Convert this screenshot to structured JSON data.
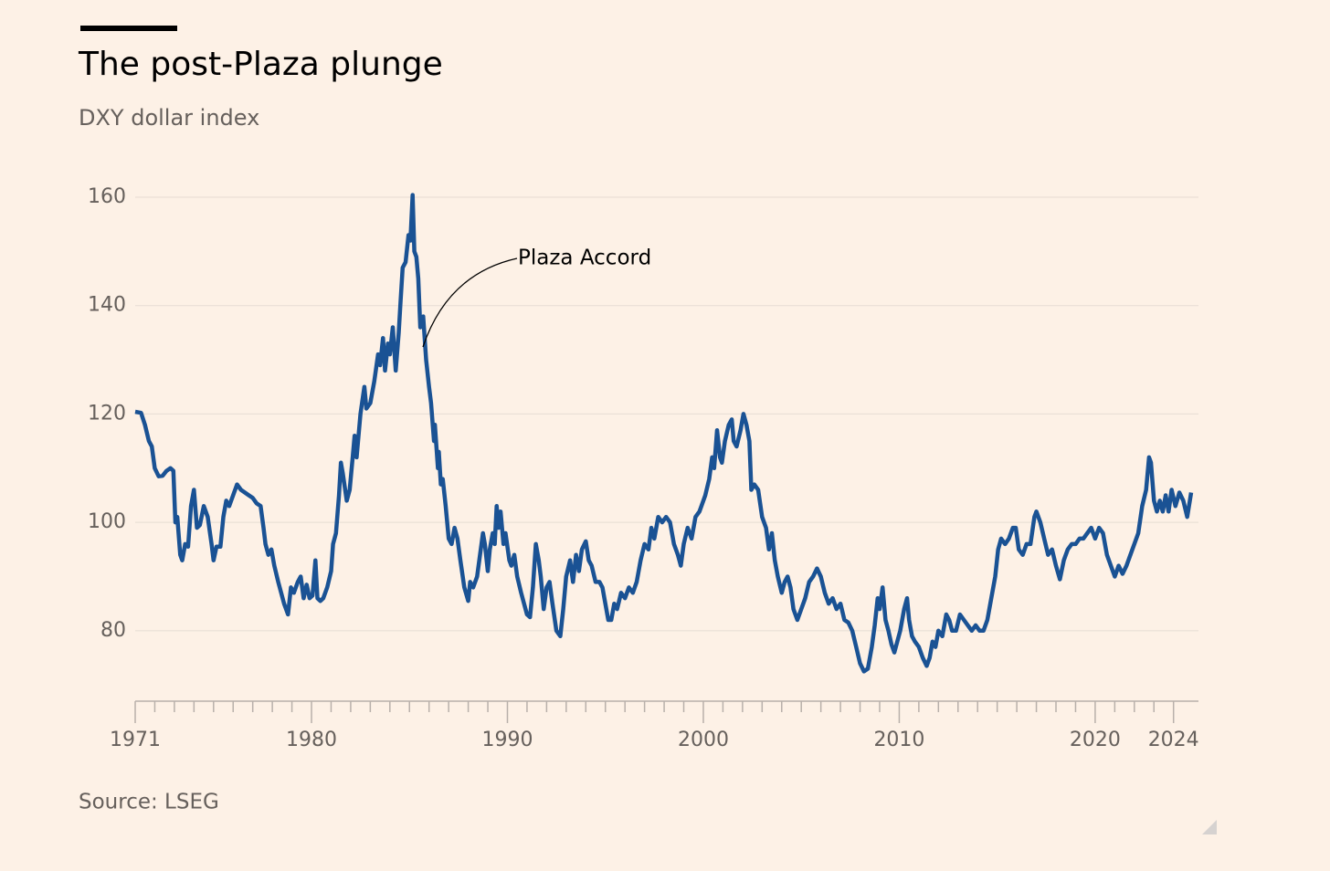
{
  "chart_data": {
    "type": "line",
    "title": "The post-Plaza plunge",
    "subtitle": "DXY dollar index",
    "source": "Source: LSEG",
    "annotation": "Plaza Accord",
    "color": "#1a5294",
    "grid": true,
    "xlim": [
      1971,
      2024.9
    ],
    "xticks": [
      1971,
      1980,
      1990,
      2000,
      2010,
      2020,
      2024
    ],
    "xminor_ticks": [
      1972,
      1973,
      1974,
      1975,
      1976,
      1977,
      1978,
      1979,
      1981,
      1982,
      1983,
      1984,
      1985,
      1986,
      1987,
      1988,
      1989,
      1991,
      1992,
      1993,
      1994,
      1995,
      1996,
      1997,
      1998,
      1999,
      2001,
      2002,
      2003,
      2004,
      2005,
      2006,
      2007,
      2008,
      2009,
      2011,
      2012,
      2013,
      2014,
      2015,
      2016,
      2017,
      2018,
      2019,
      2021,
      2022,
      2023
    ],
    "ylim": [
      67,
      160
    ],
    "yticks": [
      80,
      100,
      120,
      140,
      160
    ],
    "x": [
      1971.0,
      1971.3,
      1971.5,
      1971.7,
      1971.85,
      1972.0,
      1972.2,
      1972.4,
      1972.6,
      1972.8,
      1972.95,
      1973.05,
      1973.15,
      1973.3,
      1973.4,
      1973.55,
      1973.7,
      1973.85,
      1974.0,
      1974.15,
      1974.3,
      1974.5,
      1974.7,
      1974.9,
      1975.0,
      1975.15,
      1975.35,
      1975.5,
      1975.65,
      1975.8,
      1976.0,
      1976.2,
      1976.4,
      1976.6,
      1976.8,
      1977.0,
      1977.2,
      1977.4,
      1977.55,
      1977.65,
      1977.8,
      1977.95,
      1978.1,
      1978.3,
      1978.45,
      1978.6,
      1978.8,
      1978.95,
      1979.1,
      1979.3,
      1979.45,
      1979.6,
      1979.75,
      1979.9,
      1980.05,
      1980.2,
      1980.3,
      1980.45,
      1980.6,
      1980.8,
      1981.0,
      1981.1,
      1981.25,
      1981.4,
      1981.5,
      1981.6,
      1981.8,
      1981.95,
      1982.1,
      1982.2,
      1982.3,
      1982.5,
      1982.7,
      1982.8,
      1983.0,
      1983.2,
      1983.4,
      1983.5,
      1983.65,
      1983.75,
      1983.9,
      1984.0,
      1984.15,
      1984.3,
      1984.45,
      1984.55,
      1984.65,
      1984.8,
      1984.95,
      1985.05,
      1985.16,
      1985.25,
      1985.35,
      1985.45,
      1985.55,
      1985.7,
      1985.85,
      1986.0,
      1986.1,
      1986.25,
      1986.3,
      1986.45,
      1986.5,
      1986.6,
      1986.7,
      1986.85,
      1987.0,
      1987.15,
      1987.3,
      1987.45,
      1987.6,
      1987.8,
      1988.0,
      1988.1,
      1988.25,
      1988.45,
      1988.6,
      1988.75,
      1988.85,
      1989.0,
      1989.1,
      1989.25,
      1989.35,
      1989.45,
      1989.55,
      1989.65,
      1989.8,
      1989.9,
      1990.1,
      1990.2,
      1990.35,
      1990.5,
      1990.7,
      1990.85,
      1991.0,
      1991.15,
      1991.3,
      1991.45,
      1991.6,
      1991.7,
      1991.85,
      1992.0,
      1992.15,
      1992.3,
      1992.5,
      1992.7,
      1992.85,
      1993.0,
      1993.2,
      1993.35,
      1993.5,
      1993.65,
      1993.8,
      1994.0,
      1994.15,
      1994.3,
      1994.5,
      1994.7,
      1994.85,
      1995.0,
      1995.15,
      1995.3,
      1995.45,
      1995.6,
      1995.8,
      1996.0,
      1996.2,
      1996.4,
      1996.6,
      1996.8,
      1997.0,
      1997.2,
      1997.35,
      1997.5,
      1997.7,
      1997.9,
      1998.1,
      1998.3,
      1998.5,
      1998.7,
      1998.85,
      1999.0,
      1999.2,
      1999.4,
      1999.6,
      1999.8,
      2000.0,
      2000.1,
      2000.3,
      2000.45,
      2000.55,
      2000.7,
      2000.85,
      2000.95,
      2001.1,
      2001.3,
      2001.45,
      2001.55,
      2001.7,
      2001.9,
      2002.05,
      2002.2,
      2002.35,
      2002.45,
      2002.6,
      2002.8,
      2003.0,
      2003.2,
      2003.35,
      2003.5,
      2003.65,
      2003.8,
      2004.0,
      2004.15,
      2004.3,
      2004.45,
      2004.6,
      2004.8,
      2005.0,
      2005.2,
      2005.4,
      2005.6,
      2005.8,
      2006.0,
      2006.2,
      2006.4,
      2006.6,
      2006.8,
      2007.0,
      2007.2,
      2007.4,
      2007.6,
      2007.8,
      2008.0,
      2008.2,
      2008.4,
      2008.6,
      2008.75,
      2008.9,
      2009.0,
      2009.15,
      2009.3,
      2009.45,
      2009.6,
      2009.75,
      2009.9,
      2010.05,
      2010.25,
      2010.4,
      2010.5,
      2010.65,
      2010.8,
      2011.0,
      2011.2,
      2011.4,
      2011.55,
      2011.7,
      2011.85,
      2012.0,
      2012.2,
      2012.4,
      2012.55,
      2012.7,
      2012.9,
      2013.1,
      2013.3,
      2013.5,
      2013.7,
      2013.9,
      2014.1,
      2014.3,
      2014.5,
      2014.7,
      2014.9,
      2015.05,
      2015.2,
      2015.4,
      2015.6,
      2015.8,
      2015.95,
      2016.1,
      2016.3,
      2016.5,
      2016.7,
      2016.9,
      2017.0,
      2017.2,
      2017.4,
      2017.6,
      2017.8,
      2018.0,
      2018.2,
      2018.4,
      2018.6,
      2018.8,
      2019.0,
      2019.2,
      2019.4,
      2019.6,
      2019.8,
      2020.0,
      2020.2,
      2020.4,
      2020.6,
      2020.8,
      2021.0,
      2021.2,
      2021.4,
      2021.6,
      2021.8,
      2022.0,
      2022.2,
      2022.4,
      2022.6,
      2022.75,
      2022.85,
      2023.0,
      2023.15,
      2023.3,
      2023.45,
      2023.6,
      2023.75,
      2023.9,
      2024.1,
      2024.3,
      2024.5,
      2024.7,
      2024.9
    ],
    "values": [
      120.4,
      120.2,
      118,
      115,
      114,
      110,
      108.5,
      108.6,
      109.5,
      110,
      109.5,
      100,
      101,
      94,
      93,
      96,
      95.5,
      103,
      106,
      99,
      99.5,
      103,
      101,
      96,
      93,
      95.5,
      95.5,
      101,
      104,
      103,
      105,
      107,
      106,
      105.5,
      105,
      104.5,
      103.5,
      103,
      99,
      96,
      94,
      95,
      92,
      89,
      87,
      85,
      83,
      88,
      87,
      89,
      90,
      86,
      88.5,
      86,
      86.5,
      93,
      86,
      85.5,
      86,
      88,
      91,
      96,
      98,
      105,
      111,
      109,
      104,
      106,
      112,
      116,
      112,
      120,
      125,
      121,
      122,
      126,
      131,
      129,
      134,
      128,
      133,
      131,
      136,
      128,
      135,
      141,
      147,
      148,
      153,
      152,
      160.4,
      150,
      149,
      145,
      136,
      138,
      130,
      125,
      122,
      115,
      118,
      110,
      113,
      107,
      108,
      103,
      97,
      96,
      99,
      97,
      93,
      88,
      85.5,
      89,
      88,
      90,
      94,
      98,
      96,
      91,
      95,
      98,
      96,
      103,
      99,
      102,
      96,
      98,
      93,
      92,
      94,
      90,
      87,
      85,
      83,
      82.5,
      88,
      96,
      93,
      90,
      84,
      88,
      89,
      85,
      80,
      79,
      84,
      90,
      93,
      89,
      94,
      91,
      95,
      96.5,
      93,
      92,
      89,
      89,
      88,
      85,
      82,
      82,
      85,
      84,
      87,
      86,
      88,
      87,
      89,
      93,
      96,
      95,
      99,
      97,
      101,
      100,
      101,
      100,
      96,
      94,
      92,
      96,
      99,
      97,
      101,
      102,
      104,
      105,
      108,
      112,
      110,
      117,
      112,
      111,
      115,
      118,
      119,
      115,
      114,
      117,
      120,
      118,
      115,
      106,
      107,
      106,
      101,
      99,
      95,
      98,
      93,
      90,
      87,
      89,
      90,
      88,
      84,
      82,
      84,
      86,
      89,
      90,
      91.5,
      90,
      87,
      85,
      86,
      84,
      85,
      82,
      81.5,
      80,
      77,
      74,
      72.5,
      73,
      77,
      81,
      86,
      84,
      88,
      82,
      80,
      77.5,
      76,
      78,
      80,
      84,
      86,
      82,
      79,
      78,
      77,
      75,
      73.5,
      75,
      78,
      77,
      80,
      79,
      83,
      82,
      80,
      80,
      83,
      82,
      81,
      80,
      81,
      80,
      80,
      82,
      86,
      90,
      95,
      97,
      96,
      97,
      99,
      99,
      95,
      94,
      96,
      96,
      101,
      102,
      100,
      97,
      94,
      95,
      92,
      89.5,
      93,
      95,
      96,
      96,
      97,
      97,
      98,
      99,
      97,
      99,
      98,
      94,
      92,
      90,
      92,
      90.5,
      92,
      94,
      96,
      98,
      103,
      106,
      112,
      111,
      104,
      102,
      104,
      102,
      105,
      102,
      106,
      103,
      105.5,
      104,
      101,
      105.5
    ]
  }
}
